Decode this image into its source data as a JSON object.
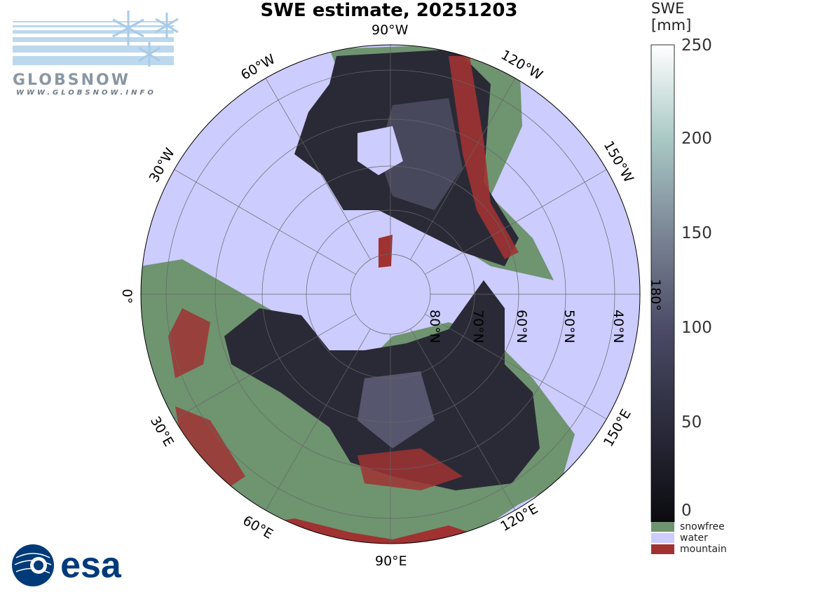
{
  "title": "SWE estimate, 20251203",
  "longitude_labels": [
    "90°W",
    "120°W",
    "150°W",
    "180°",
    "150°E",
    "120°E",
    "90°E",
    "60°E",
    "30°E",
    "0°",
    "30°W",
    "60°W"
  ],
  "latitude_labels": [
    "80°N",
    "70°N",
    "60°N",
    "50°N",
    "40°N"
  ],
  "colorbar": {
    "title_line1": "SWE",
    "title_line2": "[mm]",
    "ticks": [
      "250",
      "200",
      "150",
      "100",
      "50",
      "0"
    ],
    "range": [
      0,
      250
    ],
    "colors": {
      "low": "#0b0b10",
      "mid": "#5a5a7a",
      "high": "#ffffff"
    }
  },
  "legend": [
    {
      "label": "snowfree",
      "color": "#6f9470"
    },
    {
      "label": "water",
      "color": "#ccccff"
    },
    {
      "label": "mountain",
      "color": "#a03232"
    }
  ],
  "logos": {
    "globsnow": "GLOBSNOW",
    "globsnow_url": "WWW.GLOBSNOW.INFO",
    "esa": "esa"
  }
}
